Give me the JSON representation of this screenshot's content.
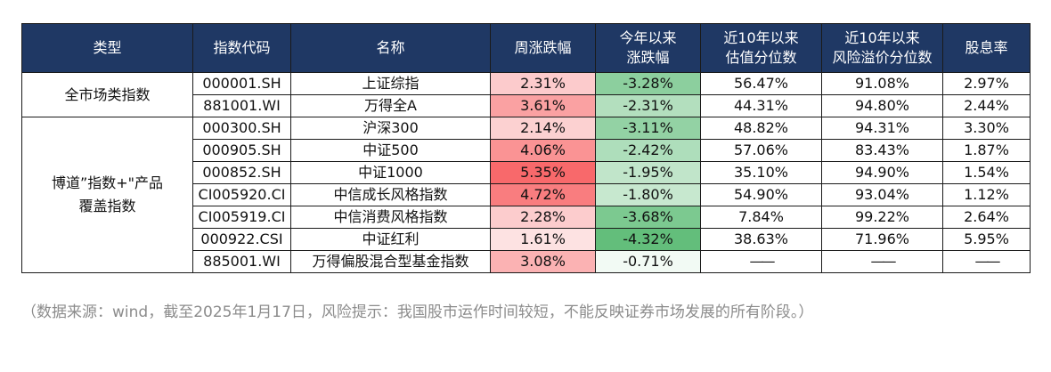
{
  "columns": [
    "类型",
    "指数代码",
    "名称",
    "周涨跌幅",
    "今年以来涨跌幅",
    "近10年以来估值分位数",
    "近10年以来风险溢价分位数",
    "股息率"
  ],
  "column_lines": [
    [
      "类型"
    ],
    [
      "指数代码"
    ],
    [
      "名称"
    ],
    [
      "周涨跌幅"
    ],
    [
      "今年以来",
      "涨跌幅"
    ],
    [
      "近10年以来",
      "估值分位数"
    ],
    [
      "近10年以来",
      "风险溢价分位数"
    ],
    [
      "股息率"
    ]
  ],
  "groups": [
    {
      "label": "全市场类指数",
      "rows": 2
    },
    {
      "label": "博道”指数+\"产品覆盖指数",
      "rows": 7
    }
  ],
  "rows": [
    {
      "code": "000001.SH",
      "name": "上证综指",
      "week": "2.31%",
      "ytd": "-3.28%",
      "pe_pct": "56.47%",
      "erp_pct": "91.08%",
      "dy": "2.97%"
    },
    {
      "code": "881001.WI",
      "name": "万得全A",
      "week": "3.61%",
      "ytd": "-2.31%",
      "pe_pct": "44.31%",
      "erp_pct": "94.80%",
      "dy": "2.44%"
    },
    {
      "code": "000300.SH",
      "name": "沪深300",
      "week": "2.14%",
      "ytd": "-3.11%",
      "pe_pct": "48.82%",
      "erp_pct": "94.31%",
      "dy": "3.30%"
    },
    {
      "code": "000905.SH",
      "name": "中证500",
      "week": "4.06%",
      "ytd": "-2.42%",
      "pe_pct": "57.06%",
      "erp_pct": "83.43%",
      "dy": "1.87%"
    },
    {
      "code": "000852.SH",
      "name": "中证1000",
      "week": "5.35%",
      "ytd": "-1.95%",
      "pe_pct": "35.10%",
      "erp_pct": "94.90%",
      "dy": "1.54%"
    },
    {
      "code": "CI005920.CI",
      "name": "中信成长风格指数",
      "week": "4.72%",
      "ytd": "-1.80%",
      "pe_pct": "54.90%",
      "erp_pct": "93.04%",
      "dy": "1.12%"
    },
    {
      "code": "CI005919.CI",
      "name": "中信消费风格指数",
      "week": "2.28%",
      "ytd": "-3.68%",
      "pe_pct": "7.84%",
      "erp_pct": "99.22%",
      "dy": "2.64%"
    },
    {
      "code": "000922.CSI",
      "name": "中证红利",
      "week": "1.61%",
      "ytd": "-4.32%",
      "pe_pct": "38.63%",
      "erp_pct": "71.96%",
      "dy": "5.95%"
    },
    {
      "code": "885001.WI",
      "name": "万得偏股混合型基金指数",
      "week": "3.08%",
      "ytd": "-0.71%",
      "pe_pct": "——",
      "erp_pct": "——",
      "dy": "——"
    }
  ],
  "week_values": [
    2.31,
    3.61,
    2.14,
    4.06,
    5.35,
    4.72,
    2.28,
    1.61,
    3.08
  ],
  "ytd_values": [
    -3.28,
    -2.31,
    -3.11,
    -2.42,
    -1.95,
    -1.8,
    -3.68,
    -4.32,
    -0.71
  ],
  "colors": {
    "header_bg": "#1f3864",
    "header_text": "#ffffff",
    "positive_strong": "#f8696b",
    "positive_weak": "#fde2e2",
    "negative_strong": "#63be7b",
    "negative_weak": "#f2faf4"
  },
  "note": "（数据来源：wind，截至2025年1月17日，风险提示：我国股市运作时间较短，不能反映证券市场发展的所有阶段。）"
}
